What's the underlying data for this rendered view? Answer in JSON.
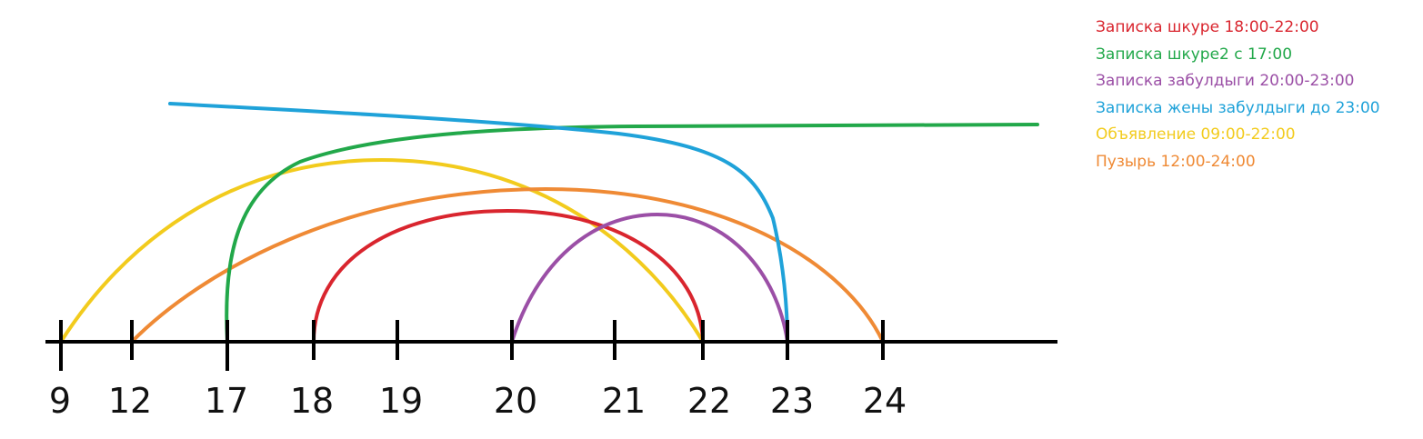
{
  "axis": {
    "ticks": [
      "9",
      "12",
      "17",
      "18",
      "19",
      "20",
      "21",
      "22",
      "23",
      "24"
    ],
    "color": "#000000"
  },
  "legend": [
    {
      "label": "Записка шкуре 18:00-22:00",
      "color": "#d9252e"
    },
    {
      "label": "Записка шкуре2 с 17:00",
      "color": "#22a84a"
    },
    {
      "label": "Записка забулдыги 20:00-23:00",
      "color": "#9b4fa6"
    },
    {
      "label": "Записка жены забулдыги до 23:00",
      "color": "#1fa2d9"
    },
    {
      "label": "Объявление 09:00-22:00",
      "color": "#f2cb1d"
    },
    {
      "label": "Пузырь 12:00-24:00",
      "color": "#ef8a35"
    }
  ],
  "intervals": [
    {
      "series": 0,
      "from": "18",
      "to": "22"
    },
    {
      "series": 1,
      "from": "17",
      "to": null
    },
    {
      "series": 2,
      "from": "20",
      "to": "23"
    },
    {
      "series": 3,
      "from": null,
      "to": "23"
    },
    {
      "series": 4,
      "from": "9",
      "to": "22"
    },
    {
      "series": 5,
      "from": "12",
      "to": "24"
    }
  ]
}
